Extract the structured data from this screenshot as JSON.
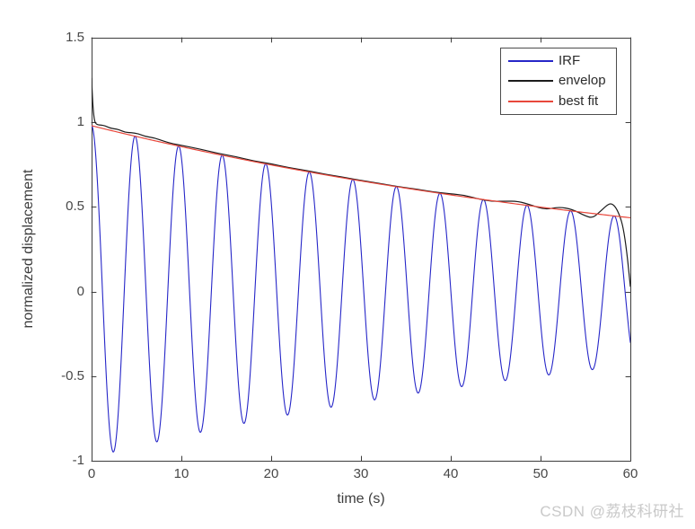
{
  "figure": {
    "background": "#ffffff",
    "watermark": {
      "text": "CSDN @荔枝科研社",
      "color": "#c9c9c9"
    }
  },
  "axes": {
    "xlabel": "time (s)",
    "ylabel": "normalized displacement",
    "xlim": [
      0,
      60
    ],
    "ylim": [
      -1,
      1.5
    ],
    "x_ticks": [
      "0",
      "10",
      "20",
      "30",
      "40",
      "50",
      "60"
    ],
    "x_tick_values": [
      0,
      10,
      20,
      30,
      40,
      50,
      60
    ],
    "y_ticks": [
      "-1",
      "-0.5",
      "0",
      "0.5",
      "1",
      "1.5"
    ],
    "y_tick_values": [
      -1,
      -0.5,
      0,
      0.5,
      1,
      1.5
    ],
    "axis_color": "#3c3c3c",
    "tick_label_color": "#474747",
    "tick_direction": "in",
    "box": true,
    "grid": false
  },
  "legend": {
    "position": "northeast",
    "border_color": "#4d4d4d",
    "entries": [
      {
        "name": "irf",
        "label": "IRF",
        "color": "#2626c8"
      },
      {
        "name": "envelop",
        "label": "envelop",
        "color": "#1c1c1c"
      },
      {
        "name": "best-fit",
        "label": "best fit",
        "color": "#e8473b"
      }
    ]
  },
  "chart_data": {
    "type": "line",
    "title": "",
    "xlabel": "time (s)",
    "ylabel": "normalized displacement",
    "xlim": [
      0,
      60
    ],
    "ylim": [
      -1,
      1.5
    ],
    "grid": false,
    "legend_position": "northeast",
    "series": [
      {
        "name": "IRF",
        "color": "#2626c8",
        "line_width": 1.1,
        "model": {
          "type": "damped_cosine",
          "amplitude": 0.98,
          "decay_rate": 0.0135,
          "period_s": 4.85,
          "phase_rad": 0
        },
        "t_range": [
          0,
          60
        ],
        "dt": 0.05
      },
      {
        "name": "envelop",
        "color": "#1c1c1c",
        "line_width": 1.2,
        "points": [
          [
            0,
            1.26
          ],
          [
            0.1,
            1.134
          ],
          [
            0.25,
            1.033
          ],
          [
            0.4,
            0.995
          ],
          [
            0.7,
            0.985
          ],
          [
            1,
            0.984
          ],
          [
            1.5,
            0.98
          ],
          [
            2,
            0.967
          ],
          [
            2.5,
            0.962
          ],
          [
            3,
            0.958
          ],
          [
            3.7,
            0.941
          ],
          [
            4.4,
            0.939
          ],
          [
            5.2,
            0.933
          ],
          [
            6,
            0.916
          ],
          [
            7,
            0.908
          ],
          [
            8,
            0.889
          ],
          [
            9,
            0.874
          ],
          [
            10,
            0.864
          ],
          [
            12,
            0.843
          ],
          [
            14,
            0.817
          ],
          [
            16,
            0.798
          ],
          [
            18,
            0.772
          ],
          [
            20,
            0.755
          ],
          [
            22,
            0.732
          ],
          [
            24,
            0.715
          ],
          [
            26,
            0.693
          ],
          [
            28,
            0.676
          ],
          [
            30,
            0.657
          ],
          [
            32,
            0.64
          ],
          [
            34,
            0.621
          ],
          [
            36,
            0.607
          ],
          [
            38,
            0.589
          ],
          [
            40,
            0.577
          ],
          [
            41.5,
            0.57
          ],
          [
            43,
            0.548
          ],
          [
            44.5,
            0.533
          ],
          [
            46,
            0.534
          ],
          [
            47.5,
            0.534
          ],
          [
            49,
            0.51
          ],
          [
            50.5,
            0.484
          ],
          [
            52,
            0.5
          ],
          [
            53.5,
            0.487
          ],
          [
            55,
            0.446
          ],
          [
            55.8,
            0.435
          ],
          [
            56.5,
            0.466
          ],
          [
            57.3,
            0.506
          ],
          [
            57.8,
            0.522
          ],
          [
            58.3,
            0.505
          ],
          [
            58.8,
            0.452
          ],
          [
            59.2,
            0.381
          ],
          [
            59.6,
            0.238
          ],
          [
            60,
            0.03
          ]
        ]
      },
      {
        "name": "best fit",
        "color": "#e8473b",
        "line_width": 1.2,
        "model": {
          "type": "exponential_decay",
          "amplitude": 0.98,
          "decay_rate": 0.0135
        },
        "t_range": [
          0,
          60
        ],
        "dt": 0.25
      }
    ]
  }
}
